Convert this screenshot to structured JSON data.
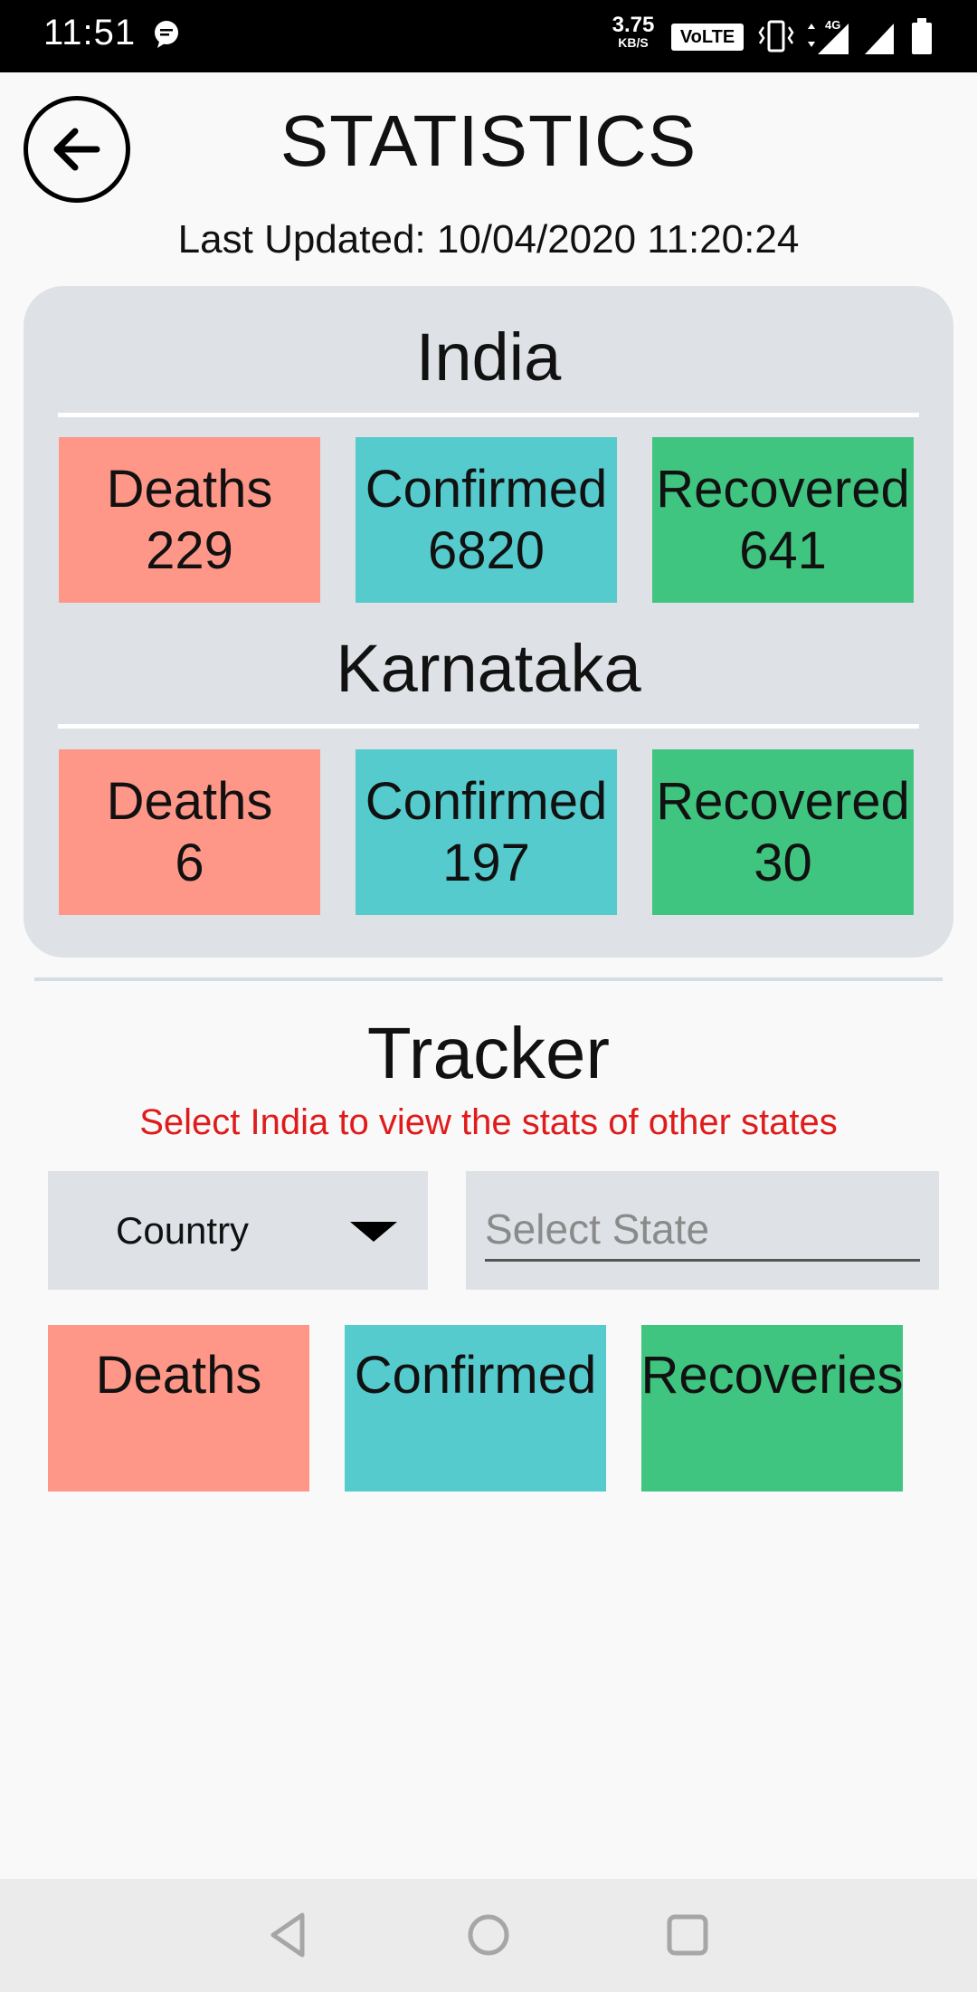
{
  "status_bar": {
    "time": "11:51",
    "net_speed_value": "3.75",
    "net_speed_unit": "KB/S",
    "volte": "VoLTE",
    "network": "4G"
  },
  "header": {
    "title": "STATISTICS",
    "last_updated": "Last Updated: 10/04/2020 11:20:24"
  },
  "regions": [
    {
      "name": "India",
      "stats": [
        {
          "label": "Deaths",
          "value": "229"
        },
        {
          "label": "Confirmed",
          "value": "6820"
        },
        {
          "label": "Recovered",
          "value": "641"
        }
      ]
    },
    {
      "name": "Karnataka",
      "stats": [
        {
          "label": "Deaths",
          "value": "6"
        },
        {
          "label": "Confirmed",
          "value": "197"
        },
        {
          "label": "Recovered",
          "value": "30"
        }
      ]
    }
  ],
  "tracker": {
    "title": "Tracker",
    "hint": "Select India to view the stats of other states",
    "country_selected": "Country",
    "state_placeholder": "Select State",
    "boxes": [
      "Deaths",
      "Confirmed",
      "Recoveries"
    ]
  },
  "colors": {
    "deaths": "#fe9788",
    "confirmed": "#55cbcd",
    "recovered": "#40c580",
    "card_bg": "#dee2e6",
    "hint_text": "#e01b1b"
  },
  "icons": {
    "back": "arrow-left-circle",
    "nav_back": "triangle-left",
    "nav_home": "circle",
    "nav_recents": "square"
  }
}
